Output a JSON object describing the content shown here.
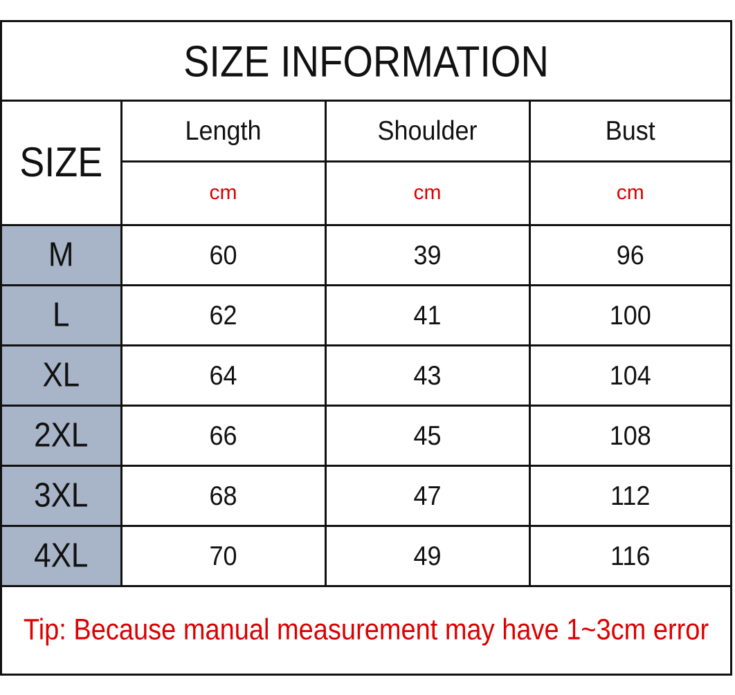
{
  "title": "SIZE INFORMATION",
  "header": {
    "size_label": "SIZE",
    "columns": [
      "Length",
      "Shoulder",
      "Bust"
    ],
    "units": [
      "cm",
      "cm",
      "cm"
    ]
  },
  "rows": [
    {
      "size": "M",
      "values": [
        "60",
        "39",
        "96"
      ]
    },
    {
      "size": "L",
      "values": [
        "62",
        "41",
        "100"
      ]
    },
    {
      "size": "XL",
      "values": [
        "64",
        "43",
        "104"
      ]
    },
    {
      "size": "2XL",
      "values": [
        "66",
        "45",
        "108"
      ]
    },
    {
      "size": "3XL",
      "values": [
        "68",
        "47",
        "112"
      ]
    },
    {
      "size": "4XL",
      "values": [
        "70",
        "49",
        "116"
      ]
    }
  ],
  "tip": "Tip: Because manual measurement may have 1~3cm error",
  "colors": {
    "border": "#111111",
    "size_cell_bg": "#a8b4c8",
    "accent_red": "#dd0000"
  }
}
